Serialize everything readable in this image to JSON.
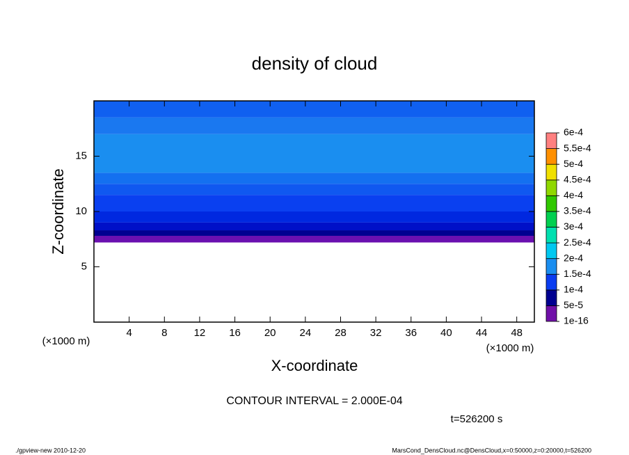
{
  "chart_data": {
    "type": "contour",
    "title": "density of cloud",
    "xlabel": "X-coordinate",
    "ylabel": "Z-coordinate",
    "x_unit_left": "(×1000 m)",
    "x_unit_right": "(×1000 m)",
    "xlim": [
      0,
      50
    ],
    "ylim": [
      0,
      20
    ],
    "xticks": [
      4,
      8,
      12,
      16,
      20,
      24,
      28,
      32,
      36,
      40,
      44,
      48
    ],
    "yticks": [
      5,
      10,
      15
    ],
    "bands": [
      {
        "z": [
          7.2,
          7.8
        ],
        "color": "#6a10b0"
      },
      {
        "z": [
          7.8,
          8.3
        ],
        "color": "#000090"
      },
      {
        "z": [
          8.3,
          9.0
        ],
        "color": "#0010c8"
      },
      {
        "z": [
          9.0,
          10.0
        ],
        "color": "#0028e0"
      },
      {
        "z": [
          10.0,
          11.5
        ],
        "color": "#0a40f0"
      },
      {
        "z": [
          11.5,
          12.5
        ],
        "color": "#1058f0"
      },
      {
        "z": [
          12.5,
          13.5
        ],
        "color": "#1470f0"
      },
      {
        "z": [
          13.5,
          17.0
        ],
        "color": "#1a8ef0"
      },
      {
        "z": [
          17.0,
          18.5
        ],
        "color": "#1a78f0"
      },
      {
        "z": [
          18.5,
          20.0
        ],
        "color": "#1060f0"
      }
    ],
    "colorbar": {
      "levels": [
        {
          "value": 1e-16,
          "label": "1e-16"
        },
        {
          "value": 5e-05,
          "label": "5e-5"
        },
        {
          "value": 0.0001,
          "label": "1e-4"
        },
        {
          "value": 0.00015,
          "label": "1.5e-4"
        },
        {
          "value": 0.0002,
          "label": "2e-4"
        },
        {
          "value": 0.00025,
          "label": "2.5e-4"
        },
        {
          "value": 0.0003,
          "label": "3e-4"
        },
        {
          "value": 0.00035,
          "label": "3.5e-4"
        },
        {
          "value": 0.0004,
          "label": "4e-4"
        },
        {
          "value": 0.00045,
          "label": "4.5e-4"
        },
        {
          "value": 0.0005,
          "label": "5e-4"
        },
        {
          "value": 0.00055,
          "label": "5.5e-4"
        },
        {
          "value": 0.0006,
          "label": "6e-4"
        }
      ],
      "colors": [
        "#7010a8",
        "#000090",
        "#0a3cf0",
        "#1a8ef0",
        "#00c8f0",
        "#00e0b0",
        "#00d050",
        "#30c800",
        "#90d800",
        "#f0e000",
        "#ff9000",
        "#ff8080"
      ]
    },
    "contour_interval": "CONTOUR INTERVAL = 2.000E-04",
    "time": "t=526200 s",
    "footer_left": "./gpview-new  2010-12-20",
    "footer_right": "MarsCond_DensCloud.nc@DensCloud,x=0:50000,z=0:20000,t=526200"
  }
}
